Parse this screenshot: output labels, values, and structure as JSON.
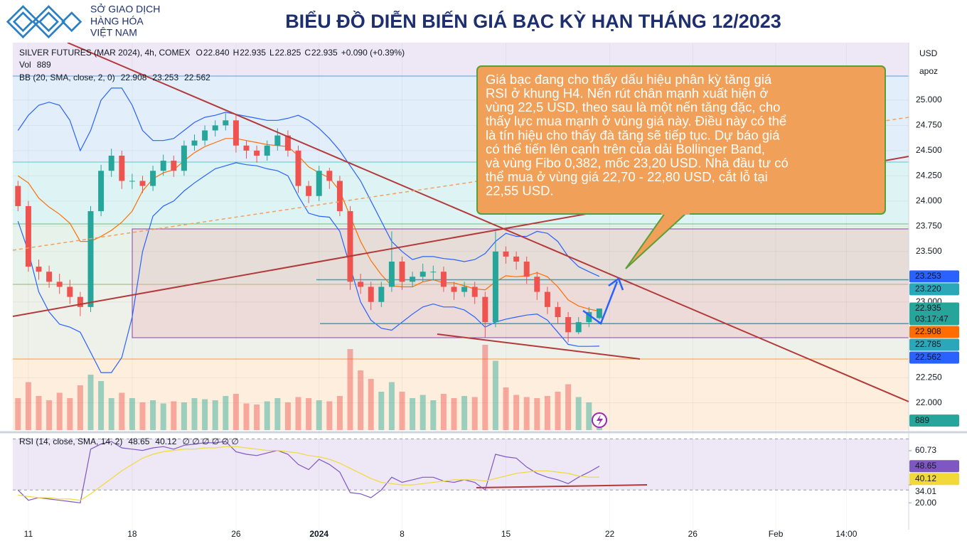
{
  "header": {
    "logo": [
      "SỞ GIAO DỊCH",
      "HÀNG HÓA",
      "VIỆT NAM"
    ],
    "title": "BIỂU ĐỒ DIỄN BIẾN GIÁ BẠC KỲ HẠN THÁNG 12/2023"
  },
  "chart_data": {
    "type": "candlestick",
    "legend": {
      "symbol": "SILVER FUTURES (MAR 2024), 4h, COMEX",
      "letters": [
        "O",
        "H",
        "L",
        "C"
      ],
      "open_label": "22.840",
      "low_label": "22.825",
      "change": "+0.090 (+0.39%)",
      "volume": "Vol",
      "bb": "BB (20, SMA, close, 2, 0)",
      "rsi": "RSI (14, close, SMA, 14, 2)",
      "rsi_na": "∅ ∅ ∅ ∅ ∅ ∅"
    },
    "currency": "USD",
    "scale_mode": "apoz",
    "countdown": "03:17:47",
    "x": [
      -0.5,
      0,
      0.5,
      1,
      1.5,
      2,
      2.5,
      3,
      3.5,
      4,
      4.5,
      5,
      5.5,
      6,
      6.5,
      7,
      7.5,
      8,
      8.5,
      9,
      9.5,
      10,
      10.5,
      11,
      11.5,
      12,
      12.5,
      13,
      13.5,
      14,
      14.5,
      15,
      15.5,
      16,
      16.5,
      17,
      17.5,
      18,
      18.5,
      19,
      19.5,
      20,
      20.5,
      21,
      21.5,
      22,
      22.5,
      23,
      23.5,
      24,
      24.5,
      25,
      25.5,
      26,
      26.5,
      27,
      27.5
    ],
    "open": [
      24.15,
      23.95,
      23.35,
      23.3,
      23.2,
      23.15,
      23.05,
      22.95,
      23.9,
      24.3,
      24.45,
      24.2,
      24.2,
      24.15,
      24.3,
      24.4,
      24.3,
      24.55,
      24.6,
      24.7,
      24.75,
      24.8,
      24.55,
      24.5,
      24.45,
      24.55,
      24.65,
      24.5,
      24.15,
      24.05,
      24.3,
      24.2,
      23.9,
      23.2,
      23.15,
      23.0,
      23.15,
      23.4,
      23.2,
      23.25,
      23.3,
      23.3,
      23.15,
      23.1,
      23.15,
      23.05,
      22.8,
      23.5,
      23.45,
      23.4,
      23.25,
      23.1,
      22.95,
      22.85,
      22.7,
      22.8,
      22.84
    ],
    "high": [
      24.2,
      24.0,
      23.42,
      23.36,
      23.28,
      23.22,
      23.1,
      23.95,
      24.36,
      24.52,
      24.5,
      24.27,
      24.25,
      24.35,
      24.46,
      24.45,
      24.6,
      24.66,
      24.75,
      24.8,
      24.87,
      24.85,
      24.6,
      24.55,
      24.6,
      24.72,
      24.7,
      24.55,
      24.2,
      24.35,
      24.33,
      24.25,
      23.95,
      23.28,
      23.2,
      23.2,
      23.7,
      23.45,
      23.3,
      23.38,
      23.36,
      23.35,
      23.2,
      23.2,
      23.2,
      23.1,
      23.7,
      23.55,
      23.5,
      23.45,
      23.3,
      23.15,
      23.0,
      22.9,
      22.85,
      22.95,
      22.935
    ],
    "low": [
      23.9,
      23.3,
      23.22,
      23.14,
      23.08,
      22.98,
      22.86,
      22.9,
      23.85,
      24.24,
      24.12,
      24.12,
      24.08,
      24.1,
      24.25,
      24.24,
      24.25,
      24.5,
      24.55,
      24.64,
      24.7,
      24.48,
      24.42,
      24.38,
      24.4,
      24.5,
      24.44,
      24.08,
      23.98,
      24.0,
      24.12,
      23.85,
      23.12,
      23.08,
      22.92,
      22.95,
      23.1,
      23.12,
      23.15,
      23.2,
      23.22,
      23.1,
      23.02,
      23.05,
      22.98,
      22.65,
      22.75,
      23.38,
      23.32,
      23.18,
      23.02,
      22.88,
      22.78,
      22.6,
      22.68,
      22.75,
      22.825
    ],
    "close": [
      23.95,
      23.35,
      23.3,
      23.2,
      23.15,
      23.05,
      22.95,
      23.9,
      24.3,
      24.45,
      24.2,
      24.2,
      24.15,
      24.3,
      24.4,
      24.3,
      24.55,
      24.6,
      24.7,
      24.75,
      24.8,
      24.55,
      24.5,
      24.45,
      24.55,
      24.65,
      24.5,
      24.15,
      24.05,
      24.3,
      24.2,
      23.9,
      23.2,
      23.15,
      23.0,
      23.15,
      23.4,
      23.2,
      23.25,
      23.3,
      23.3,
      23.15,
      23.1,
      23.15,
      23.05,
      22.8,
      23.5,
      23.45,
      23.4,
      23.25,
      23.1,
      22.95,
      22.85,
      22.7,
      22.8,
      22.9,
      22.935
    ],
    "volume": [
      3000,
      4500,
      3200,
      2800,
      3500,
      3000,
      4200,
      5200,
      4600,
      3000,
      3500,
      3000,
      2600,
      2800,
      2500,
      2700,
      2600,
      3000,
      2900,
      2800,
      3200,
      3400,
      2500,
      2400,
      2700,
      3000,
      2600,
      3100,
      3000,
      2800,
      2700,
      3200,
      7600,
      5600,
      4800,
      3600,
      4500,
      3600,
      3000,
      3300,
      2800,
      3400,
      3000,
      3200,
      3100,
      8000,
      6500,
      4000,
      3300,
      3100,
      3000,
      3200,
      3600,
      4300,
      3100,
      2600,
      889
    ],
    "volume_lim": [
      0,
      8000
    ],
    "up_color": "#26a69a",
    "down_color": "#ef5350",
    "bollinger": {
      "basis": [
        24.25,
        24.18,
        24.03,
        23.94,
        23.87,
        23.78,
        23.6,
        23.6,
        23.65,
        23.71,
        23.79,
        23.9,
        24.1,
        24.22,
        24.28,
        24.31,
        24.4,
        24.48,
        24.54,
        24.58,
        24.62,
        24.62,
        24.6,
        24.58,
        24.56,
        24.55,
        24.54,
        24.45,
        24.34,
        24.28,
        24.23,
        24.1,
        23.85,
        23.6,
        23.41,
        23.27,
        23.16,
        23.15,
        23.15,
        23.2,
        23.22,
        23.19,
        23.19,
        23.16,
        23.13,
        23.12,
        23.2,
        23.26,
        23.25,
        23.26,
        23.29,
        23.25,
        23.15,
        23.02,
        22.96,
        22.93,
        22.908
      ],
      "upper": [
        24.7,
        24.85,
        24.95,
        24.98,
        24.95,
        24.8,
        24.5,
        24.7,
        25.0,
        25.12,
        25.12,
        24.95,
        24.7,
        24.6,
        24.6,
        24.62,
        24.7,
        24.78,
        24.83,
        24.85,
        24.88,
        24.86,
        24.84,
        24.82,
        24.8,
        24.8,
        24.82,
        24.85,
        24.8,
        24.72,
        24.62,
        24.5,
        24.35,
        24.2,
        24.0,
        23.8,
        23.6,
        23.5,
        23.42,
        23.45,
        23.45,
        23.43,
        23.42,
        23.4,
        23.42,
        23.48,
        23.6,
        23.68,
        23.65,
        23.65,
        23.7,
        23.68,
        23.6,
        23.45,
        23.35,
        23.3,
        23.253
      ],
      "lower": [
        23.8,
        23.5,
        23.1,
        22.9,
        22.78,
        22.75,
        22.7,
        22.5,
        22.3,
        22.3,
        22.45,
        22.85,
        23.5,
        23.85,
        23.95,
        24.0,
        24.1,
        24.18,
        24.25,
        24.32,
        24.35,
        24.38,
        24.36,
        24.35,
        24.32,
        24.3,
        24.25,
        24.05,
        23.88,
        23.85,
        23.84,
        23.7,
        23.35,
        23.0,
        22.82,
        22.74,
        22.72,
        22.8,
        22.88,
        22.95,
        22.98,
        22.95,
        22.95,
        22.92,
        22.85,
        22.75,
        22.8,
        22.83,
        22.85,
        22.87,
        22.88,
        22.82,
        22.7,
        22.58,
        22.56,
        22.56,
        22.562
      ],
      "basis_color": "#ff6d00",
      "band_color": "#2962ff"
    },
    "levels": [
      {
        "value": 23.22,
        "label": "23.220"
      },
      22.785
    ],
    "level_color": "#2aa7b8",
    "xlim": [
      -0.75,
      42.4
    ],
    "xticks": [
      {
        "value": 0,
        "label": "11"
      },
      {
        "value": 5,
        "label": "18"
      },
      {
        "value": 10,
        "label": "26"
      },
      {
        "value": 14,
        "label": "2024"
      },
      {
        "value": 18,
        "label": "8"
      },
      {
        "value": 23,
        "label": "15"
      },
      {
        "value": 28,
        "label": "22"
      },
      {
        "value": 32,
        "label": "26"
      },
      {
        "value": 36,
        "label": "Feb"
      },
      {
        "value": 39.4,
        "label": "14:00"
      }
    ],
    "ylim": [
      21.73,
      25.57
    ],
    "yticks": [
      {
        "value": 25,
        "label": "25.000"
      },
      {
        "value": 24.75,
        "label": "24.750"
      },
      {
        "value": 24.5,
        "label": "24.500"
      },
      {
        "value": 24.25,
        "label": "24.250"
      },
      {
        "value": 24,
        "label": "24.000"
      },
      {
        "value": 23.75,
        "label": "23.750"
      },
      {
        "value": 23.5,
        "label": "23.500"
      },
      {
        "value": 23,
        "label": "23.000"
      },
      {
        "value": 22.25,
        "label": "22.250"
      },
      {
        "value": 22,
        "label": "22.000"
      }
    ],
    "grid": true,
    "rsi": {
      "values": [
        30,
        22,
        24,
        23,
        22,
        21,
        20,
        62,
        66,
        68,
        63,
        62,
        61,
        63,
        64,
        62,
        65,
        66,
        67,
        67,
        68,
        60,
        58,
        57,
        59,
        61,
        58,
        50,
        46,
        54,
        50,
        44,
        28,
        27,
        24,
        30,
        40,
        36,
        38,
        40,
        40,
        37,
        36,
        38,
        36,
        30,
        58,
        56,
        55,
        48,
        43,
        40,
        38,
        35,
        40,
        44,
        48.65
      ],
      "ma": [
        26,
        25,
        24,
        24,
        23,
        23,
        22,
        27,
        33,
        39,
        45,
        50,
        55,
        58,
        60,
        61,
        62,
        62,
        63,
        63,
        64,
        64,
        63,
        62,
        61,
        61,
        60,
        59,
        57,
        56,
        54,
        51,
        47,
        43,
        39,
        36,
        35,
        34,
        34,
        35,
        36,
        37,
        38,
        38,
        38,
        37,
        39,
        41,
        43,
        44,
        45,
        45,
        44,
        43,
        41,
        40,
        40.12
      ],
      "color": "#7e57c2",
      "ma_color": "#f2d93a",
      "ylim": [
        -1,
        73
      ],
      "yticks": [
        60.73,
        34.01,
        {
          "value": 20,
          "label": "20.00"
        }
      ],
      "band": [
        30,
        70
      ]
    },
    "annotation": [
      "Giá bạc đang cho thấy dấu hiệu phân kỳ tăng giá",
      "RSI ở khung H4. Nến rút chân mạnh xuất hiện ở",
      "vùng 22,5 USD, theo sau là một nến tăng đặc, cho",
      "thấy lực mua mạnh ở vùng giá này. Điều này có thể",
      "là tín hiệu cho thấy đà tăng sẽ tiếp tục. Dự báo giá",
      "có thể tiến lên cạnh trên của dải Bollinger Band,",
      "và vùng Fibo 0,382, mốc 23,20 USD. Nhà đầu tư có",
      "thể mua ở vùng giá 22,70 - 22,80 USD, cắt lỗ tại",
      "22,55 USD."
    ]
  }
}
